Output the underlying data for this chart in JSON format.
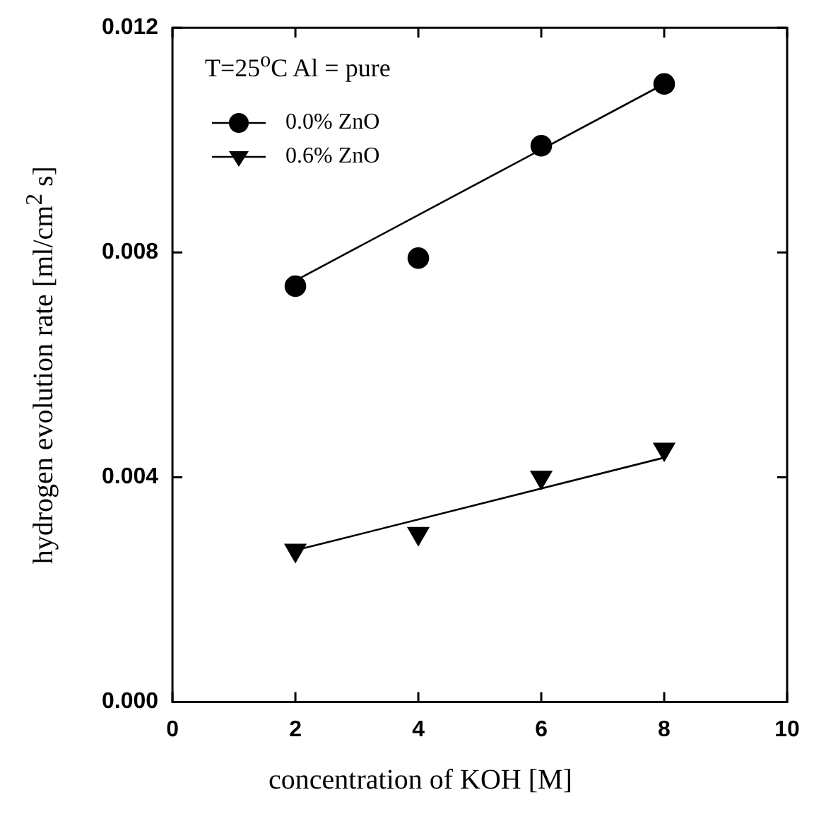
{
  "chart_data": {
    "type": "scatter",
    "xlabel": "concentration of KOH [M]",
    "ylabel": "hydrogen evolution rate [ml/cm$^{2}$ s]",
    "annotations": [
      "T=25$^{o}$C  Al = pure"
    ],
    "x": [
      2,
      4,
      6,
      8
    ],
    "series": [
      {
        "name": "0.0% ZnO",
        "color": "#000000",
        "marker": "circle",
        "values": [
          0.0074,
          0.0079,
          0.0099,
          0.011
        ]
      },
      {
        "name": "0.6% ZnO",
        "color": "#000000",
        "marker": "triangle",
        "values": [
          0.0027,
          0.003,
          0.004,
          0.0045
        ]
      },
      {
        "type": "line",
        "color": "#000000",
        "marker": "none",
        "values": [
          0.0075,
          null,
          null,
          0.011
        ]
      },
      {
        "type": "line",
        "color": "#000000",
        "marker": "none",
        "values": [
          0.0027,
          null,
          null,
          0.00435
        ]
      }
    ],
    "xlim": [
      0,
      10
    ],
    "xticks": [
      0,
      2,
      4,
      6,
      8,
      10
    ],
    "ylim": [
      0,
      0.012
    ],
    "yticks": [
      {
        "value": 0,
        "label": "0.000"
      },
      0.004,
      0.008,
      0.012
    ],
    "grid": false,
    "legend": "top left"
  }
}
